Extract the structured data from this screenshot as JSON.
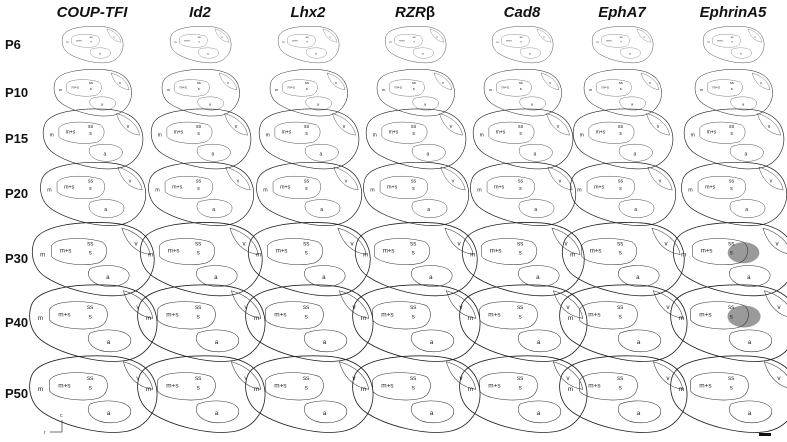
{
  "genes": [
    {
      "label": "COUP-TFI",
      "greek": ""
    },
    {
      "label": "Id2",
      "greek": ""
    },
    {
      "label": "Lhx2",
      "greek": ""
    },
    {
      "label": "RZR",
      "greek": "β"
    },
    {
      "label": "Cad8",
      "greek": ""
    },
    {
      "label": "EphA7",
      "greek": ""
    },
    {
      "label": "EphrinA5",
      "greek": ""
    }
  ],
  "ages": [
    "P6",
    "P10",
    "P15",
    "P20",
    "P30",
    "P40",
    "P50"
  ],
  "area_labels": {
    "m": "m",
    "ms": "m+s",
    "s": "s",
    "ss": "ss",
    "a": "a",
    "v": "v"
  },
  "orientation": {
    "r": "r",
    "c": "c"
  },
  "colors": {
    "dark": "#4a4a4a",
    "mid": "#8a8a8a",
    "light": "#d2d2d2",
    "outline": "#222222"
  },
  "expression": {
    "COUP-TFI": [
      "gradient-caudal",
      "gradient-caudal",
      "gradient-caudal",
      "gradient-caudal",
      "gradient-caudal",
      "gradient-caudal",
      "gradient-caudal"
    ],
    "Id2": [
      "gradient-dorsal",
      "gradient-dorsal",
      "gradient-dorsal",
      "gradient-dorsal",
      "gradient-dorsal",
      "gradient-dorsal",
      "gradient-dorsal"
    ],
    "Lhx2": [
      "gradient-dorsal",
      "gradient-dorsal",
      "weak",
      "weak",
      "none",
      "none",
      "none"
    ],
    "RZR": [
      "gradient-rostral",
      "gradient-rostral",
      "gradient-rostral",
      "gradient-rostral",
      "gradient-rostral",
      "gradient-rostral",
      "gradient-rostral"
    ],
    "Cad8": [
      "gradient-dorsal",
      "gradient-dorsal",
      "gradient-dorsal",
      "weak",
      "weak",
      "weak",
      "weak"
    ],
    "EphA7": [
      "weak",
      "weak",
      "weak",
      "weak",
      "none",
      "none",
      "none"
    ],
    "EphrinA5": [
      "gradient-caudal",
      "gradient-caudal",
      "gradient-caudal",
      "gradient-caudal",
      "spot",
      "spot",
      "none"
    ]
  }
}
